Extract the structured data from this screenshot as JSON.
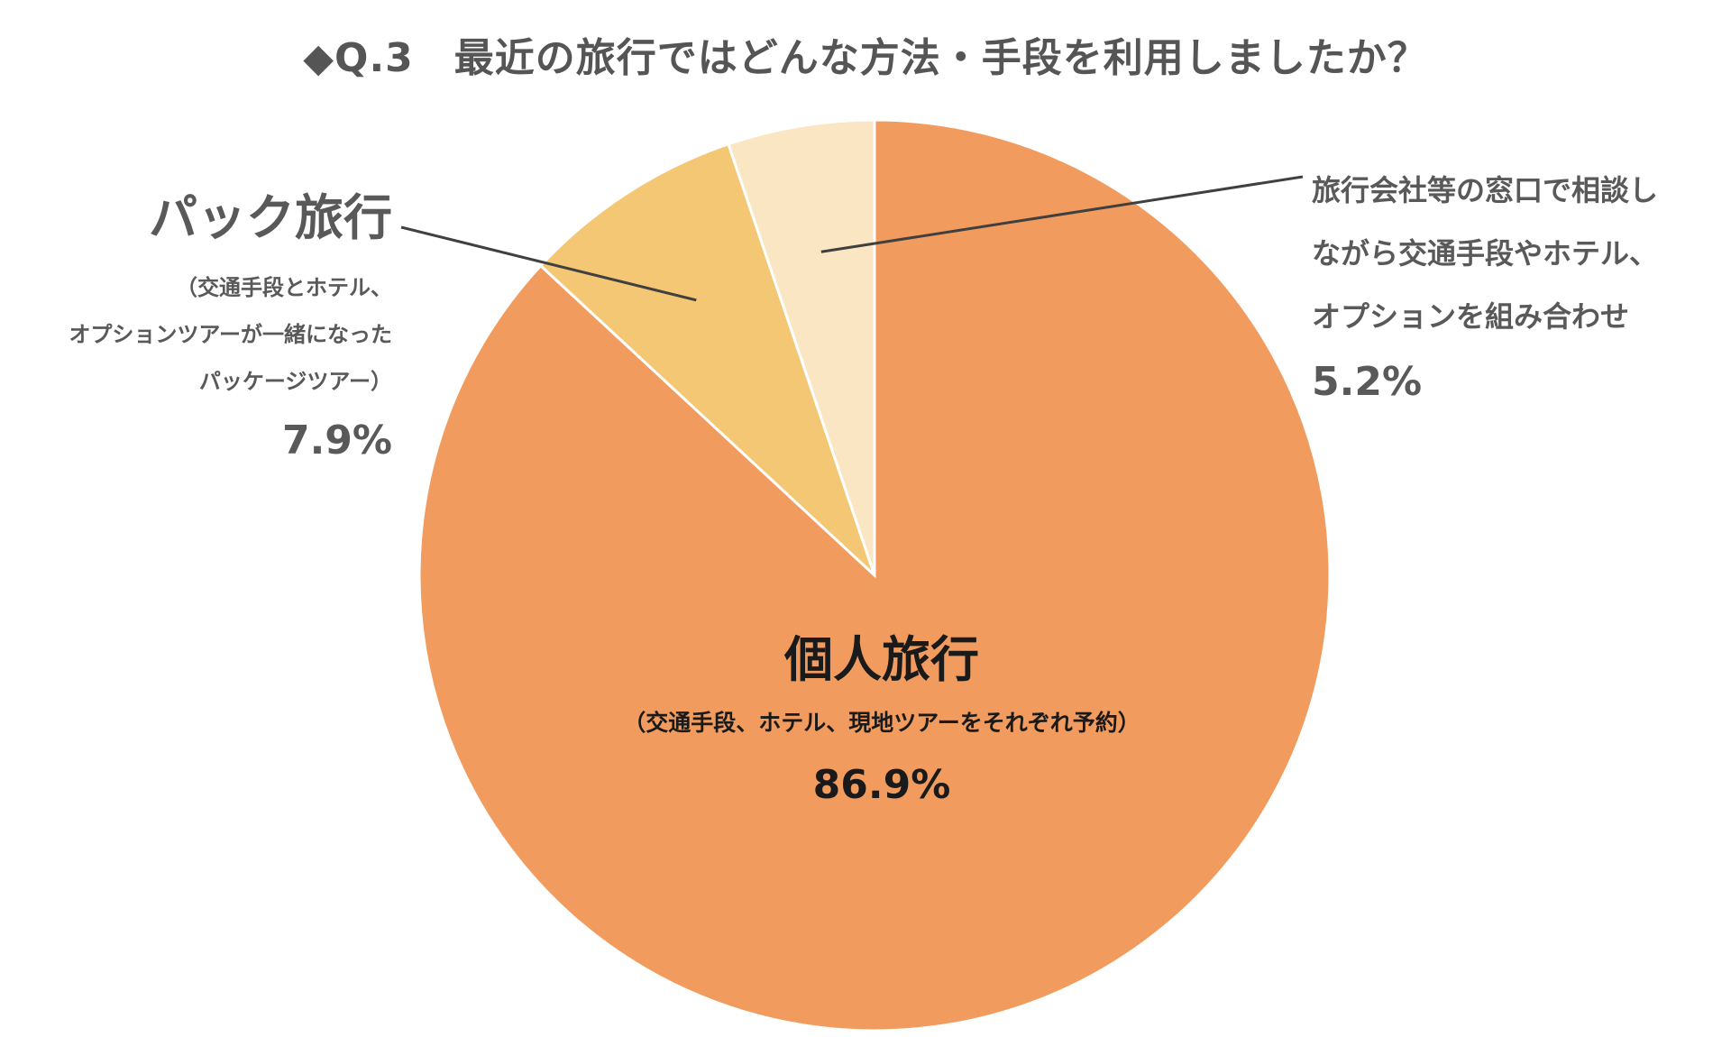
{
  "title": "◆Q.3　最近の旅行ではどんな方法・手段を利用しましたか？",
  "chart_data": {
    "type": "pie",
    "title": "◆Q.3　最近の旅行ではどんな方法・手段を利用しましたか？",
    "start": "12 o'clock, clockwise",
    "slices": [
      {
        "label": "個人旅行",
        "desc": "（交通手段、ホテル、現地ツアーをそれぞれ予約）",
        "value": 86.9,
        "pct_text": "86.9%",
        "color": "#F19C5E"
      },
      {
        "label": "パック旅行",
        "desc_lines": [
          "（交通手段とホテル、",
          "オプションツアーが一緒になった",
          "パッケージツアー）"
        ],
        "value": 7.9,
        "pct_text": "7.9%",
        "color": "#F4C774"
      },
      {
        "label": "",
        "desc_lines": [
          "旅行会社等の窓口で相談し",
          "ながら交通手段やホテル、",
          "オプションを組み合わせ"
        ],
        "value": 5.2,
        "pct_text": "5.2%",
        "color": "#FBE6C4"
      }
    ],
    "label_line_color": "#404040",
    "slice_border_color": "#ffffff"
  }
}
